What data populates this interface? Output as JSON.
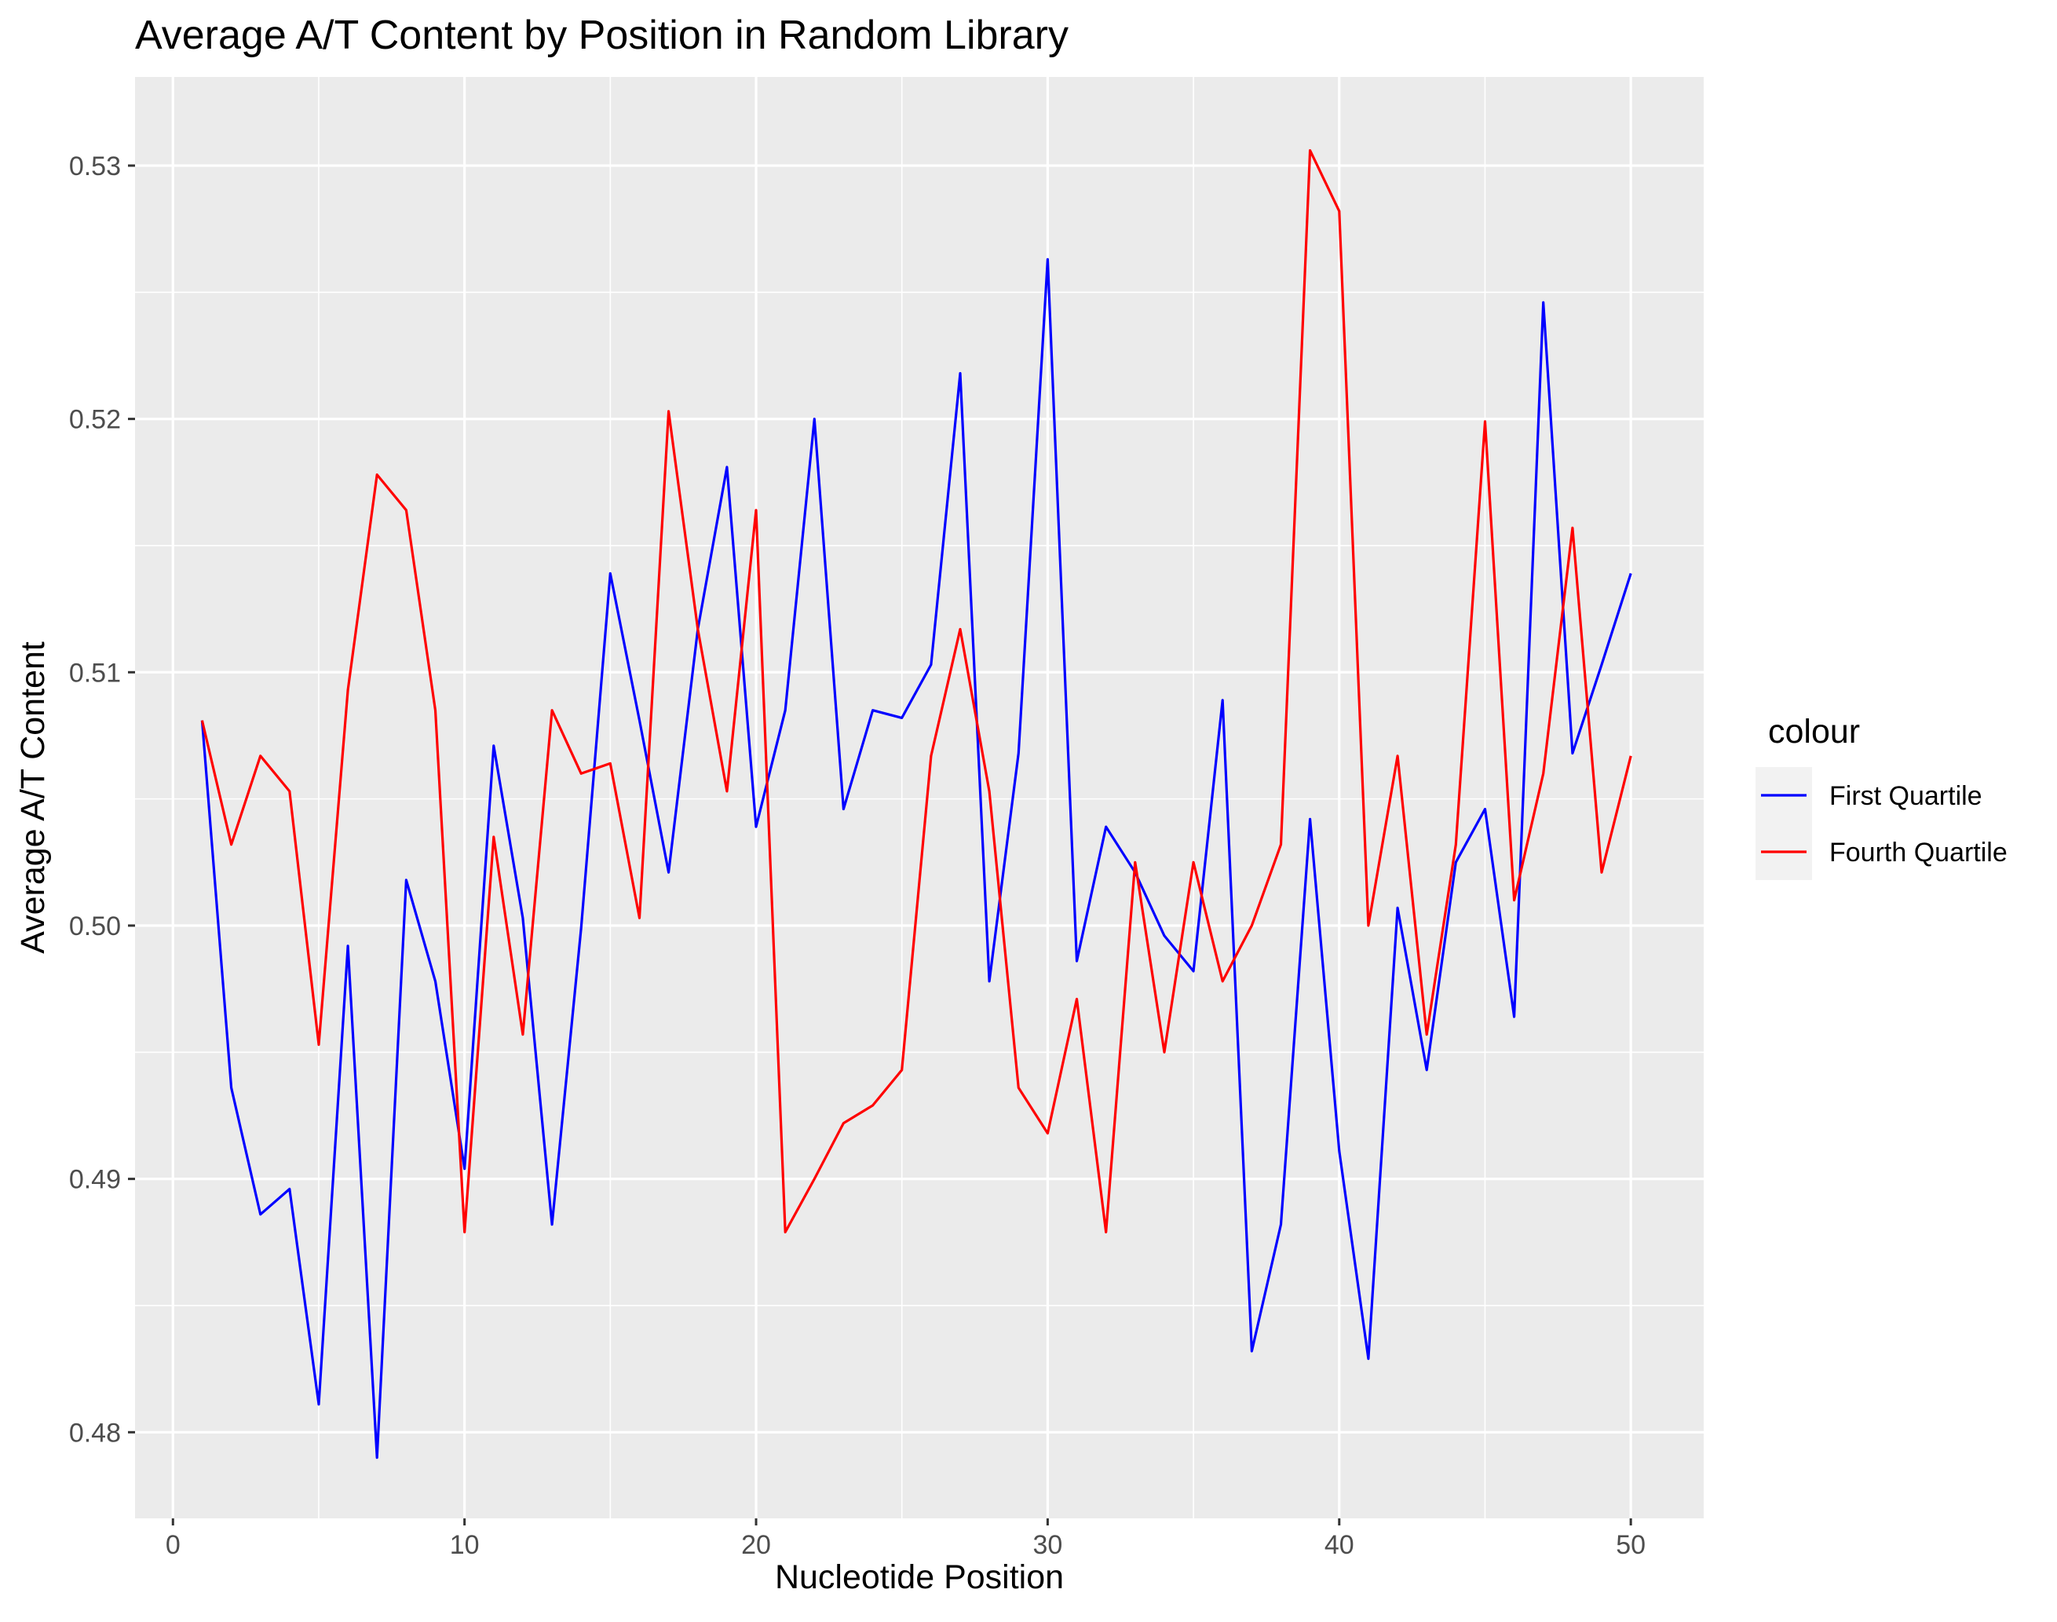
{
  "chart_data": {
    "type": "line",
    "title": "Average A/T Content by Position in Random Library",
    "xlabel": "Nucleotide Position",
    "ylabel": "Average A/T Content",
    "xlim": [
      -1.3,
      52.5
    ],
    "ylim": [
      0.4766,
      0.5335
    ],
    "x_ticks": [
      0,
      10,
      20,
      30,
      40,
      50
    ],
    "x_tick_labels": [
      "0",
      "10",
      "20",
      "30",
      "40",
      "50"
    ],
    "y_ticks": [
      0.48,
      0.49,
      0.5,
      0.51,
      0.52,
      0.53
    ],
    "y_tick_labels": [
      "0.48",
      "0.49",
      "0.50",
      "0.51",
      "0.52",
      "0.53"
    ],
    "grid": true,
    "background": "#ebebeb",
    "legend": {
      "title": "colour",
      "position": "right",
      "entries": [
        "First Quartile",
        "Fourth Quartile"
      ]
    },
    "x": [
      1,
      2,
      3,
      4,
      5,
      6,
      7,
      8,
      9,
      10,
      11,
      12,
      13,
      14,
      15,
      16,
      17,
      18,
      19,
      20,
      21,
      22,
      23,
      24,
      25,
      26,
      27,
      28,
      29,
      30,
      31,
      32,
      33,
      34,
      35,
      36,
      37,
      38,
      39,
      40,
      41,
      42,
      43,
      44,
      45,
      46,
      47,
      48,
      49,
      50
    ],
    "series": [
      {
        "name": "First Quartile",
        "color": "#0000ff",
        "values": [
          0.5081,
          0.4936,
          0.4886,
          0.4896,
          0.4811,
          0.4992,
          0.479,
          0.5018,
          0.4978,
          0.4904,
          0.5071,
          0.5003,
          0.4882,
          0.4999,
          0.5139,
          0.5081,
          0.5021,
          0.5117,
          0.5181,
          0.5039,
          0.5085,
          0.52,
          0.5046,
          0.5085,
          0.5082,
          0.5103,
          0.5218,
          0.4978,
          0.5068,
          0.5263,
          0.4986,
          0.5039,
          0.5021,
          0.4996,
          0.4982,
          0.5089,
          0.4832,
          0.4882,
          0.5042,
          0.4911,
          0.4829,
          0.5007,
          0.4943,
          0.5025,
          0.5046,
          0.4964,
          0.5246,
          0.5068,
          0.5103,
          0.5139
        ]
      },
      {
        "name": "Fourth Quartile",
        "color": "#ff0000",
        "values": [
          0.5081,
          0.5032,
          0.5067,
          0.5053,
          0.4953,
          0.5093,
          0.5178,
          0.5164,
          0.5085,
          0.4879,
          0.5035,
          0.4957,
          0.5085,
          0.506,
          0.5064,
          0.5003,
          0.5203,
          0.5117,
          0.5053,
          0.5164,
          0.4879,
          0.49,
          0.4922,
          0.4929,
          0.4943,
          0.5067,
          0.5117,
          0.5053,
          0.4936,
          0.4918,
          0.4971,
          0.4879,
          0.5025,
          0.495,
          0.5025,
          0.4978,
          0.5,
          0.5032,
          0.5306,
          0.5282,
          0.5,
          0.5067,
          0.4957,
          0.5032,
          0.5199,
          0.501,
          0.506,
          0.5157,
          0.5021,
          0.5067
        ]
      }
    ]
  }
}
